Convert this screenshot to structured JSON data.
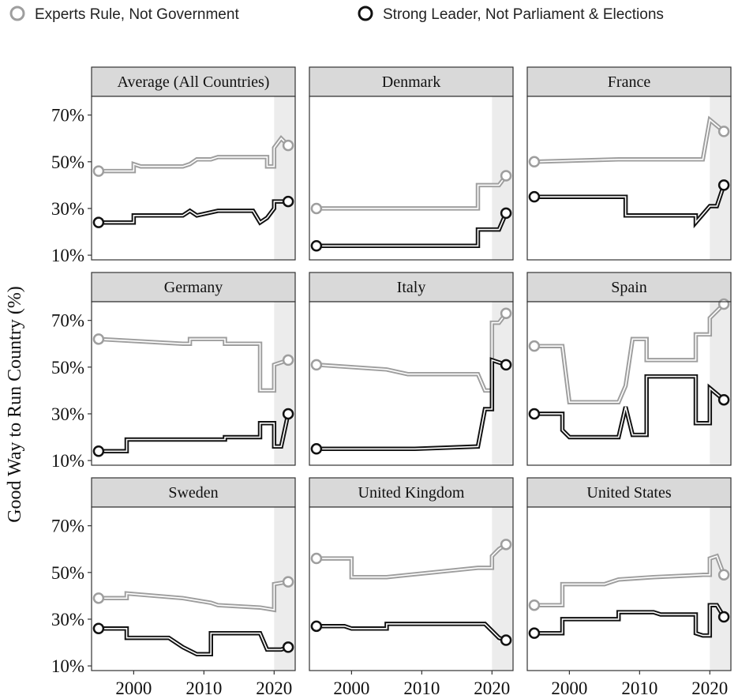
{
  "chart_data": {
    "type": "line",
    "subtype": "step",
    "layout": "facets 3x3",
    "ylabel": "Good Way to Run Country (%)",
    "xlabel": "",
    "xlim": [
      1994,
      2023
    ],
    "ylim": [
      8,
      78
    ],
    "x_ticks": [
      2000,
      2010,
      2020
    ],
    "x_tick_labels": [
      "2000",
      "2010",
      "2020"
    ],
    "y_ticks": [
      10,
      30,
      50,
      70
    ],
    "y_tick_labels": [
      "10%",
      "30%",
      "50%",
      "70%"
    ],
    "shaded_region": [
      2020,
      2023
    ],
    "legend": {
      "position": "top",
      "entries": [
        {
          "key": "experts",
          "label": "Experts Rule, Not Government",
          "color": "#9e9e9e"
        },
        {
          "key": "leader",
          "label": "Strong Leader, Not Parliament & Elections",
          "color": "#111111"
        }
      ]
    },
    "facets": [
      {
        "title": "Average (All Countries)",
        "experts": [
          [
            1995,
            46
          ],
          [
            2000,
            46
          ],
          [
            2000,
            49
          ],
          [
            2001,
            48
          ],
          [
            2007,
            48
          ],
          [
            2008,
            49
          ],
          [
            2009,
            51
          ],
          [
            2011,
            51
          ],
          [
            2012,
            52
          ],
          [
            2019,
            52
          ],
          [
            2019,
            48
          ],
          [
            2020,
            48
          ],
          [
            2020,
            56
          ],
          [
            2021,
            60
          ],
          [
            2022,
            57
          ]
        ],
        "leader": [
          [
            1995,
            24
          ],
          [
            2000,
            24
          ],
          [
            2000,
            27
          ],
          [
            2007,
            27
          ],
          [
            2008,
            29
          ],
          [
            2009,
            27
          ],
          [
            2012,
            29
          ],
          [
            2017,
            29
          ],
          [
            2018,
            24
          ],
          [
            2019,
            26
          ],
          [
            2020,
            30
          ],
          [
            2020,
            33
          ],
          [
            2022,
            33
          ]
        ]
      },
      {
        "title": "Denmark",
        "experts": [
          [
            1995,
            30
          ],
          [
            2018,
            30
          ],
          [
            2018,
            40
          ],
          [
            2021,
            40
          ],
          [
            2022,
            44
          ]
        ],
        "leader": [
          [
            1995,
            14
          ],
          [
            2018,
            14
          ],
          [
            2018,
            21
          ],
          [
            2021,
            21
          ],
          [
            2022,
            28
          ]
        ]
      },
      {
        "title": "France",
        "experts": [
          [
            1995,
            50
          ],
          [
            2007,
            51
          ],
          [
            2019,
            51
          ],
          [
            2020,
            68
          ],
          [
            2022,
            63
          ]
        ],
        "leader": [
          [
            1995,
            35
          ],
          [
            2008,
            35
          ],
          [
            2008,
            27
          ],
          [
            2018,
            27
          ],
          [
            2018,
            24
          ],
          [
            2020,
            31
          ],
          [
            2021,
            31
          ],
          [
            2022,
            40
          ]
        ]
      },
      {
        "title": "Germany",
        "experts": [
          [
            1995,
            62
          ],
          [
            2007,
            60
          ],
          [
            2008,
            60
          ],
          [
            2008,
            62
          ],
          [
            2013,
            62
          ],
          [
            2013,
            60
          ],
          [
            2018,
            60
          ],
          [
            2018,
            40
          ],
          [
            2020,
            40
          ],
          [
            2020,
            51
          ],
          [
            2022,
            53
          ]
        ],
        "leader": [
          [
            1995,
            14
          ],
          [
            1999,
            14
          ],
          [
            1999,
            19
          ],
          [
            2013,
            19
          ],
          [
            2013,
            20
          ],
          [
            2018,
            20
          ],
          [
            2018,
            26
          ],
          [
            2020,
            26
          ],
          [
            2020,
            16
          ],
          [
            2021,
            16
          ],
          [
            2022,
            30
          ]
        ]
      },
      {
        "title": "Italy",
        "experts": [
          [
            1995,
            51
          ],
          [
            2005,
            49
          ],
          [
            2008,
            47
          ],
          [
            2018,
            47
          ],
          [
            2019,
            40
          ],
          [
            2020,
            40
          ],
          [
            2020,
            69
          ],
          [
            2021,
            69
          ],
          [
            2022,
            73
          ]
        ],
        "leader": [
          [
            1995,
            15
          ],
          [
            2009,
            15
          ],
          [
            2018,
            16
          ],
          [
            2019,
            32
          ],
          [
            2020,
            32
          ],
          [
            2020,
            53
          ],
          [
            2022,
            51
          ]
        ]
      },
      {
        "title": "Spain",
        "experts": [
          [
            1995,
            59
          ],
          [
            1999,
            59
          ],
          [
            2000,
            35
          ],
          [
            2007,
            35
          ],
          [
            2008,
            42
          ],
          [
            2009,
            62
          ],
          [
            2011,
            62
          ],
          [
            2011,
            53
          ],
          [
            2018,
            53
          ],
          [
            2018,
            64
          ],
          [
            2020,
            64
          ],
          [
            2020,
            71
          ],
          [
            2022,
            77
          ]
        ],
        "leader": [
          [
            1995,
            30
          ],
          [
            1999,
            30
          ],
          [
            1999,
            23
          ],
          [
            2000,
            20
          ],
          [
            2007,
            20
          ],
          [
            2008,
            33
          ],
          [
            2009,
            21
          ],
          [
            2011,
            21
          ],
          [
            2011,
            46
          ],
          [
            2018,
            46
          ],
          [
            2018,
            26
          ],
          [
            2020,
            26
          ],
          [
            2020,
            41
          ],
          [
            2022,
            36
          ]
        ]
      },
      {
        "title": "Sweden",
        "experts": [
          [
            1995,
            39
          ],
          [
            1999,
            39
          ],
          [
            1999,
            41
          ],
          [
            2007,
            39
          ],
          [
            2011,
            37
          ],
          [
            2012,
            36
          ],
          [
            2018,
            35
          ],
          [
            2020,
            34
          ],
          [
            2020,
            45
          ],
          [
            2022,
            46
          ]
        ],
        "leader": [
          [
            1995,
            26
          ],
          [
            1999,
            26
          ],
          [
            1999,
            22
          ],
          [
            2005,
            22
          ],
          [
            2007,
            18
          ],
          [
            2009,
            15
          ],
          [
            2011,
            15
          ],
          [
            2011,
            24
          ],
          [
            2018,
            24
          ],
          [
            2019,
            17
          ],
          [
            2021,
            17
          ],
          [
            2022,
            18
          ]
        ]
      },
      {
        "title": "United Kingdom",
        "experts": [
          [
            1995,
            56
          ],
          [
            2000,
            56
          ],
          [
            2000,
            48
          ],
          [
            2005,
            48
          ],
          [
            2018,
            52
          ],
          [
            2020,
            52
          ],
          [
            2020,
            57
          ],
          [
            2021,
            60
          ],
          [
            2022,
            62
          ]
        ],
        "leader": [
          [
            1995,
            27
          ],
          [
            1999,
            27
          ],
          [
            2000,
            26
          ],
          [
            2005,
            26
          ],
          [
            2005,
            28
          ],
          [
            2019,
            28
          ],
          [
            2020,
            25
          ],
          [
            2021,
            22
          ],
          [
            2022,
            21
          ]
        ]
      },
      {
        "title": "United States",
        "experts": [
          [
            1995,
            36
          ],
          [
            1999,
            36
          ],
          [
            1999,
            45
          ],
          [
            2005,
            45
          ],
          [
            2006,
            46
          ],
          [
            2007,
            47
          ],
          [
            2012,
            48
          ],
          [
            2019,
            49
          ],
          [
            2020,
            49
          ],
          [
            2020,
            56
          ],
          [
            2021,
            57
          ],
          [
            2022,
            49
          ]
        ],
        "leader": [
          [
            1995,
            24
          ],
          [
            1999,
            24
          ],
          [
            1999,
            30
          ],
          [
            2007,
            30
          ],
          [
            2007,
            33
          ],
          [
            2012,
            33
          ],
          [
            2013,
            32
          ],
          [
            2018,
            32
          ],
          [
            2018,
            24
          ],
          [
            2019,
            23
          ],
          [
            2020,
            23
          ],
          [
            2020,
            36
          ],
          [
            2021,
            36
          ],
          [
            2022,
            31
          ]
        ]
      }
    ]
  }
}
